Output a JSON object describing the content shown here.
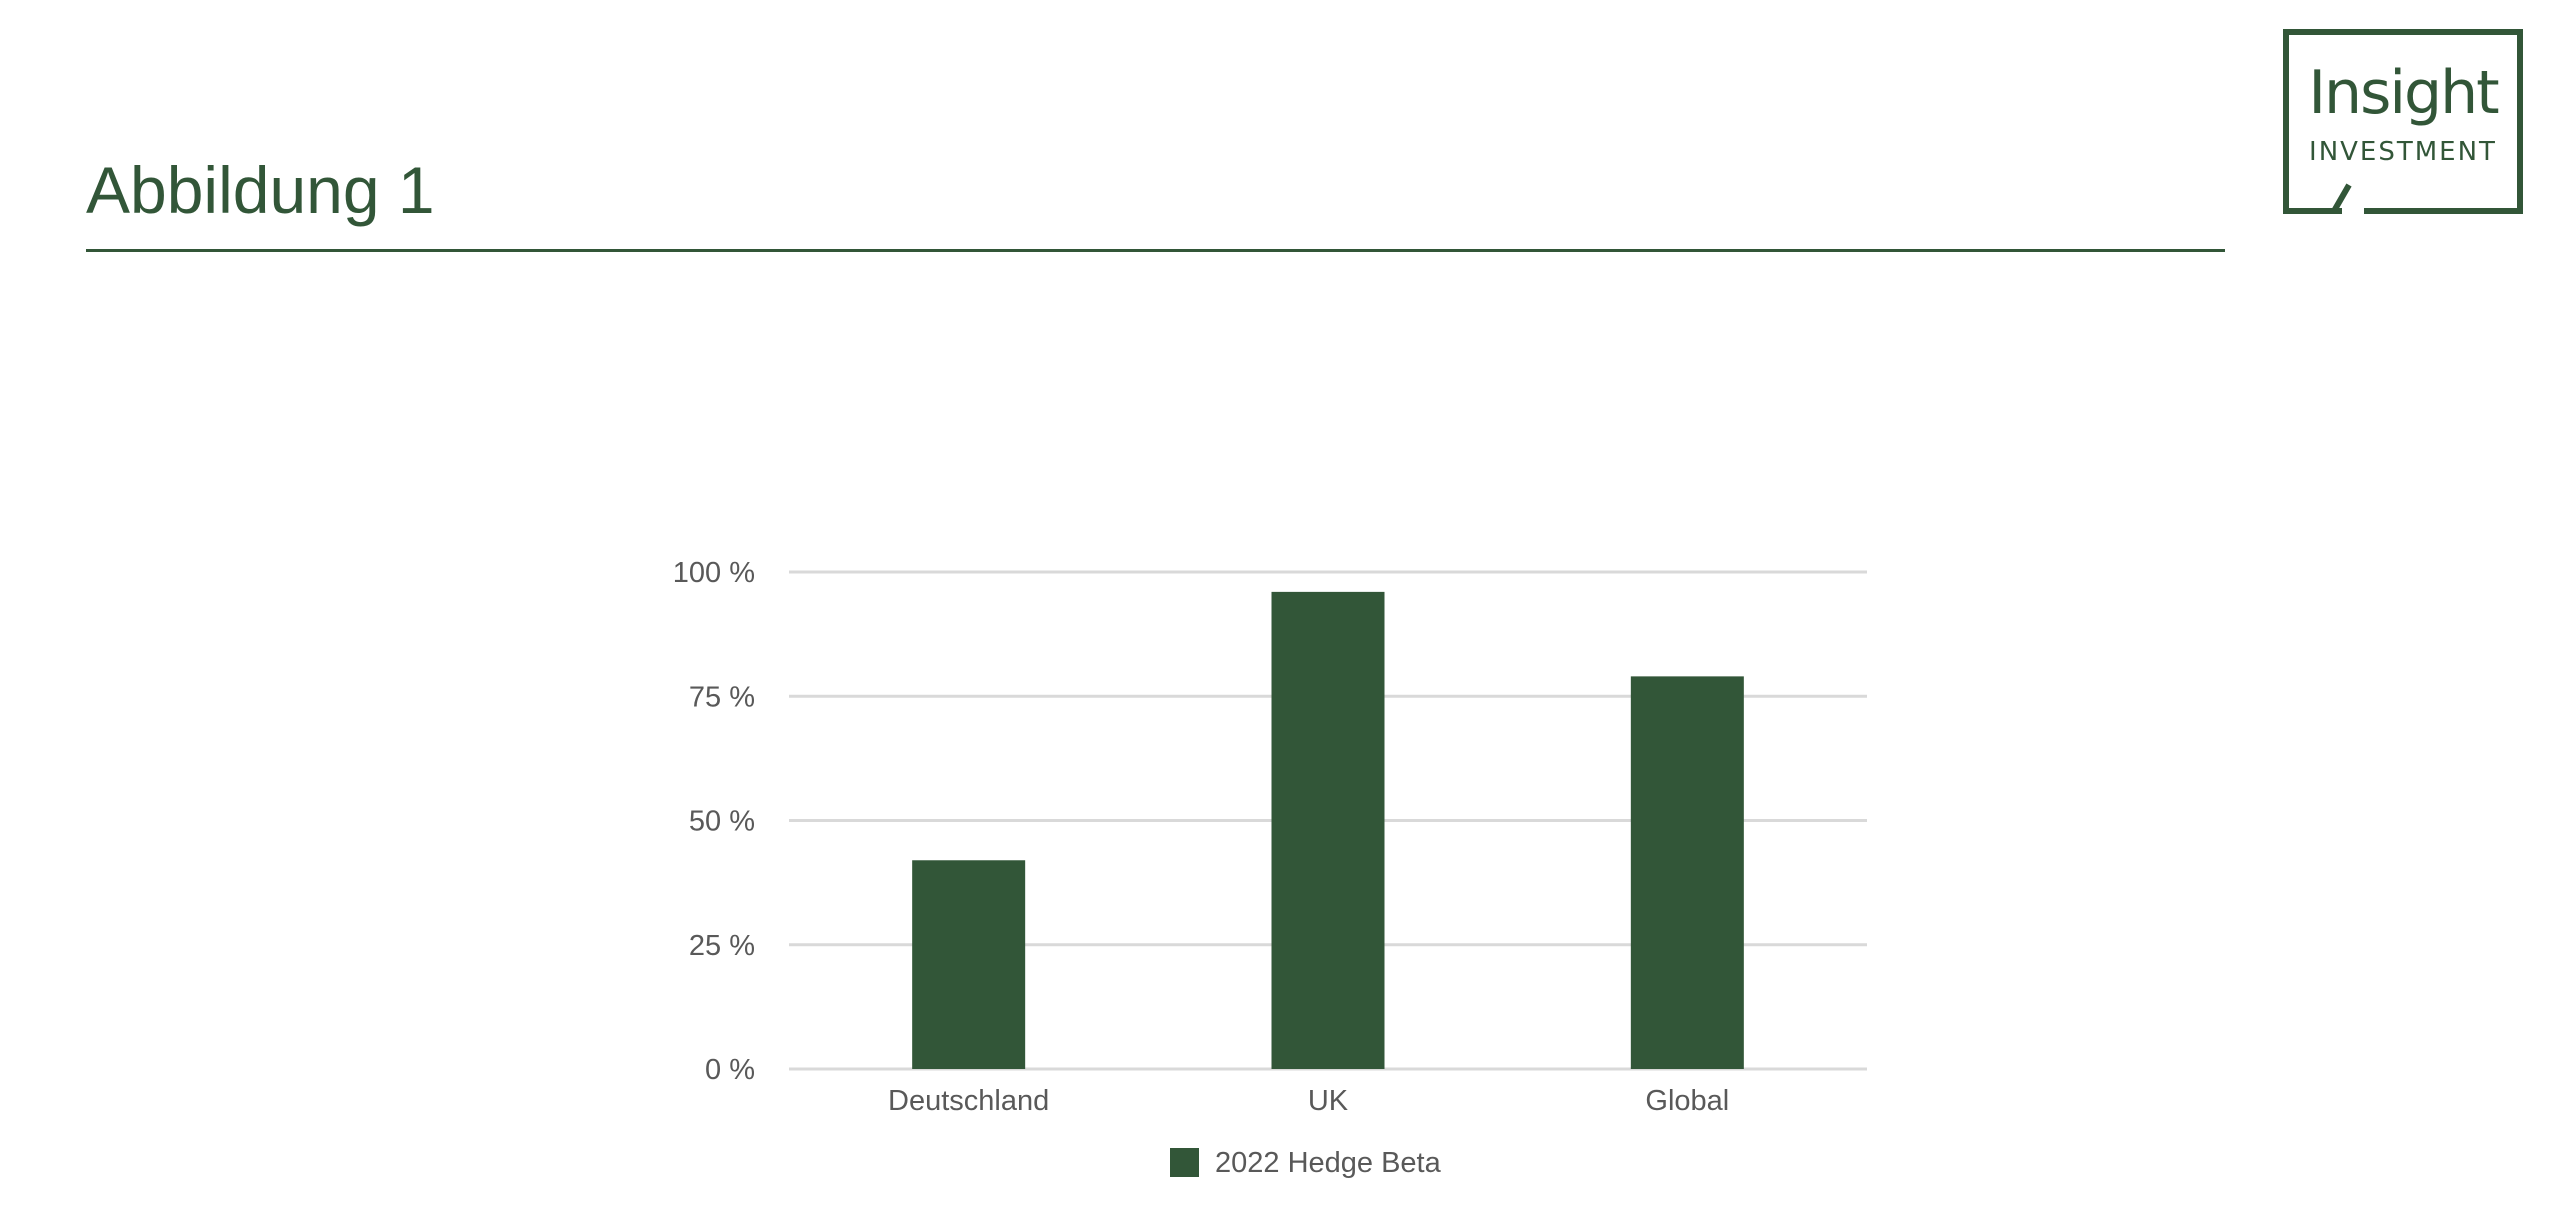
{
  "header": {
    "title": "Abbildung 1"
  },
  "logo": {
    "line1": "Insight",
    "line2": "INVESTMENT"
  },
  "colors": {
    "brand": "#325638",
    "bar": "#325638",
    "grid": "#d9d9d9",
    "axis_text": "#595959"
  },
  "chart_data": {
    "type": "bar",
    "categories": [
      "Deutschland",
      "UK",
      "Global"
    ],
    "series": [
      {
        "name": "2022 Hedge Beta",
        "values": [
          42,
          96,
          79
        ]
      }
    ],
    "yticks": [
      "0 %",
      "25 %",
      "50 %",
      "75 %",
      "100 %"
    ],
    "ylim": [
      0,
      100
    ],
    "grid": true,
    "legend": "bottom"
  }
}
